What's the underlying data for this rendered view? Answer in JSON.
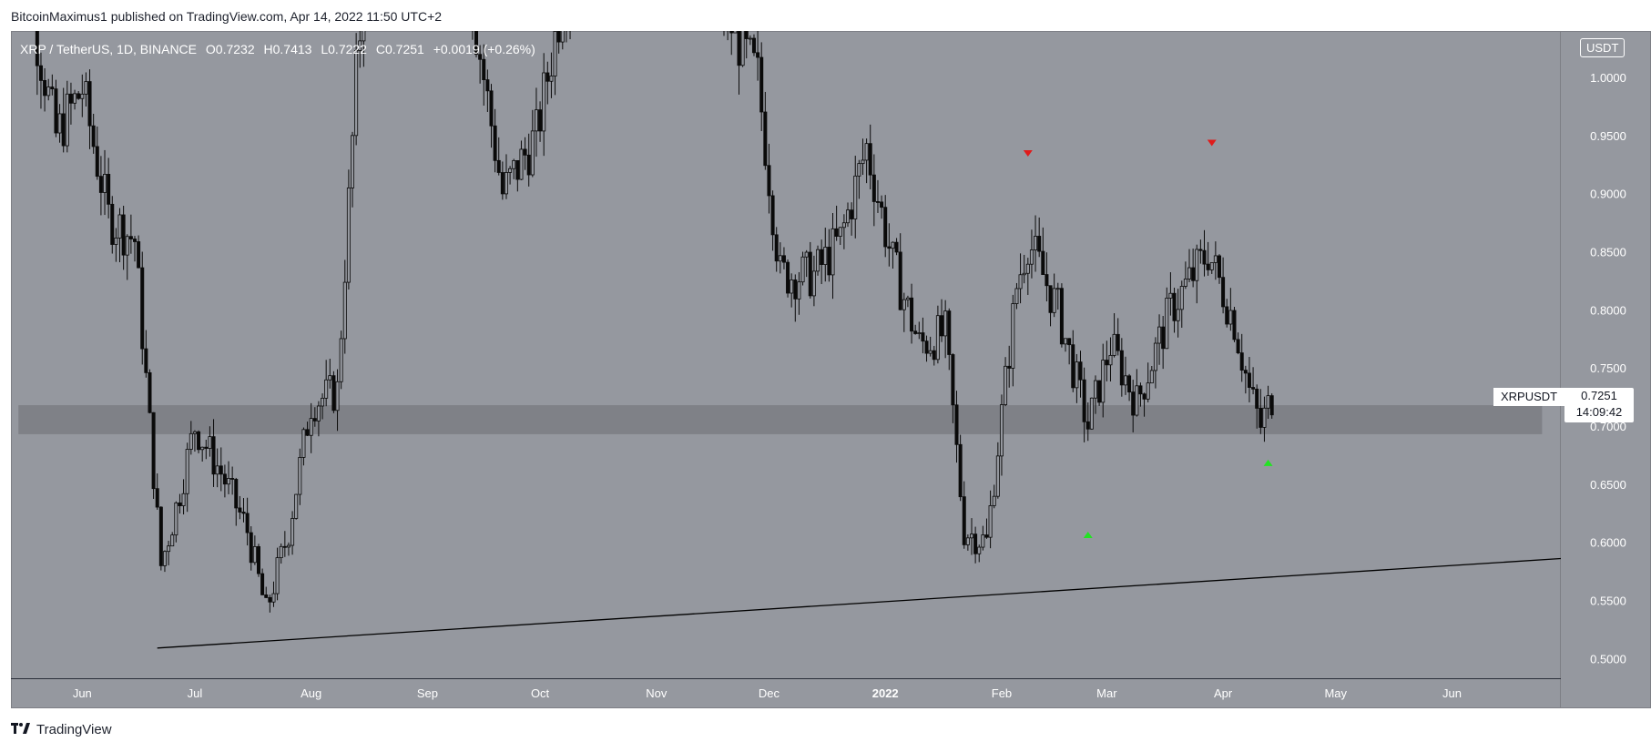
{
  "header": {
    "published_by": "BitcoinMaximus1 published on TradingView.com, Apr 14, 2022 11:50 UTC+2"
  },
  "legend": {
    "symbol": "XRP / TetherUS, 1D, BINANCE",
    "open_label": "O",
    "open": "0.7232",
    "high_label": "H",
    "high": "0.7413",
    "low_label": "L",
    "low": "0.7222",
    "close_label": "C",
    "close": "0.7251",
    "change": "+0.0019 (+0.26%)"
  },
  "currency": "USDT",
  "last_price": {
    "symbol": "XRPUSDT",
    "price": "0.7251",
    "countdown": "14:09:42"
  },
  "footer": {
    "logo_icon": "tradingview-logo-icon",
    "brand": "TradingView"
  },
  "colors": {
    "background": "#95989f",
    "candle": "#0a0a0a",
    "support_zone": "#7b7d83",
    "trendline": "#000000",
    "resistance_marker": "#e01b1b",
    "support_marker": "#22e322"
  },
  "chart_data": {
    "type": "candlestick",
    "title": "XRP / TetherUS, 1D, BINANCE",
    "price_scale": {
      "ylim": [
        0.483,
        1.04
      ],
      "ticks": [
        1.0,
        0.95,
        0.9,
        0.85,
        0.8,
        0.75,
        0.7,
        0.65,
        0.6,
        0.55,
        0.5
      ],
      "tick_labels": [
        "1.0000",
        "0.9500",
        "0.9000",
        "0.8500",
        "0.8000",
        "0.7500",
        "0.7000",
        "0.6500",
        "0.6000",
        "0.5500",
        "0.5000"
      ]
    },
    "time_scale": {
      "start": "2021-05-13",
      "end": "2022-06-30",
      "ticks": [
        {
          "label": "Jun",
          "date": "2021-06-01"
        },
        {
          "label": "Jul",
          "date": "2021-07-01"
        },
        {
          "label": "Aug",
          "date": "2021-08-01"
        },
        {
          "label": "Sep",
          "date": "2021-09-01"
        },
        {
          "label": "Oct",
          "date": "2021-10-01"
        },
        {
          "label": "Nov",
          "date": "2021-11-01"
        },
        {
          "label": "Dec",
          "date": "2021-12-01"
        },
        {
          "label": "2022",
          "date": "2022-01-01"
        },
        {
          "label": "Feb",
          "date": "2022-02-01"
        },
        {
          "label": "Mar",
          "date": "2022-03-01"
        },
        {
          "label": "Apr",
          "date": "2022-04-01"
        },
        {
          "label": "May",
          "date": "2022-05-01"
        },
        {
          "label": "Jun",
          "date": "2022-06-01"
        }
      ]
    },
    "path_points": [
      {
        "date": "2021-05-13",
        "price": 1.35
      },
      {
        "date": "2021-05-19",
        "price": 1.05
      },
      {
        "date": "2021-05-25",
        "price": 0.95
      },
      {
        "date": "2021-06-01",
        "price": 0.99
      },
      {
        "date": "2021-06-08",
        "price": 0.88
      },
      {
        "date": "2021-06-15",
        "price": 0.86
      },
      {
        "date": "2021-06-22",
        "price": 0.58
      },
      {
        "date": "2021-06-26",
        "price": 0.63
      },
      {
        "date": "2021-07-01",
        "price": 0.7
      },
      {
        "date": "2021-07-08",
        "price": 0.66
      },
      {
        "date": "2021-07-15",
        "price": 0.61
      },
      {
        "date": "2021-07-20",
        "price": 0.54
      },
      {
        "date": "2021-07-26",
        "price": 0.61
      },
      {
        "date": "2021-08-01",
        "price": 0.72
      },
      {
        "date": "2021-08-08",
        "price": 0.73
      },
      {
        "date": "2021-08-13",
        "price": 1.0
      },
      {
        "date": "2021-08-18",
        "price": 1.2
      },
      {
        "date": "2021-09-01",
        "price": 1.25
      },
      {
        "date": "2021-09-10",
        "price": 1.12
      },
      {
        "date": "2021-09-21",
        "price": 0.9
      },
      {
        "date": "2021-09-30",
        "price": 0.95
      },
      {
        "date": "2021-10-10",
        "price": 1.12
      },
      {
        "date": "2021-10-25",
        "price": 1.1
      },
      {
        "date": "2021-11-05",
        "price": 1.18
      },
      {
        "date": "2021-11-20",
        "price": 1.05
      },
      {
        "date": "2021-11-28",
        "price": 1.0
      },
      {
        "date": "2021-12-04",
        "price": 0.83
      },
      {
        "date": "2021-12-13",
        "price": 0.83
      },
      {
        "date": "2021-12-20",
        "price": 0.86
      },
      {
        "date": "2021-12-27",
        "price": 0.94
      },
      {
        "date": "2022-01-03",
        "price": 0.84
      },
      {
        "date": "2022-01-10",
        "price": 0.77
      },
      {
        "date": "2022-01-17",
        "price": 0.78
      },
      {
        "date": "2022-01-22",
        "price": 0.61
      },
      {
        "date": "2022-01-28",
        "price": 0.6
      },
      {
        "date": "2022-02-05",
        "price": 0.82
      },
      {
        "date": "2022-02-08",
        "price": 0.86
      },
      {
        "date": "2022-02-16",
        "price": 0.8
      },
      {
        "date": "2022-02-24",
        "price": 0.7
      },
      {
        "date": "2022-03-02",
        "price": 0.77
      },
      {
        "date": "2022-03-09",
        "price": 0.72
      },
      {
        "date": "2022-03-18",
        "price": 0.8
      },
      {
        "date": "2022-03-28",
        "price": 0.85
      },
      {
        "date": "2022-04-04",
        "price": 0.79
      },
      {
        "date": "2022-04-08",
        "price": 0.73
      },
      {
        "date": "2022-04-11",
        "price": 0.7
      },
      {
        "date": "2022-04-14",
        "price": 0.725
      }
    ],
    "support_zone": {
      "from": "2021-05-15",
      "to": "2022-06-25",
      "low": 0.693,
      "high": 0.718
    },
    "trendline": [
      {
        "date": "2021-06-21",
        "price": 0.509
      },
      {
        "date": "2022-06-30",
        "price": 0.586
      }
    ],
    "resistance_markers": [
      {
        "date": "2022-02-08",
        "price": 0.935
      },
      {
        "date": "2022-03-29",
        "price": 0.944
      }
    ],
    "support_markers": [
      {
        "date": "2022-02-24",
        "price": 0.606
      },
      {
        "date": "2022-04-13",
        "price": 0.668
      }
    ],
    "last_close": 0.7251
  }
}
